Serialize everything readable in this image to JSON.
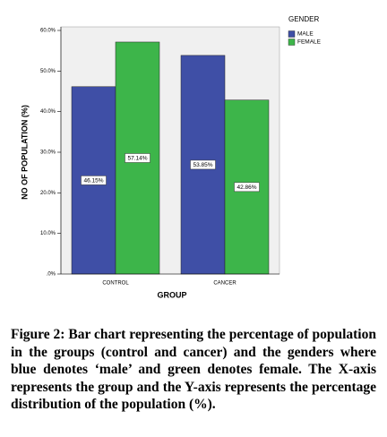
{
  "chart_data": {
    "type": "bar",
    "categories": [
      "CONTROL",
      "CANCER"
    ],
    "series": [
      {
        "name": "MALE",
        "color": "#3f4fa6",
        "values": [
          46.15,
          53.85
        ],
        "value_labels": [
          "46.15%",
          "53.85%"
        ]
      },
      {
        "name": "FEMALE",
        "color": "#3db54a",
        "values": [
          57.14,
          42.86
        ],
        "value_labels": [
          "57.14%",
          "42.86%"
        ]
      }
    ],
    "ylim": [
      0,
      60
    ],
    "yticks": [
      {
        "value": 0,
        "label": ".0%"
      },
      {
        "value": 10,
        "label": "10.0%"
      },
      {
        "value": 20,
        "label": "20.0%"
      },
      {
        "value": 30,
        "label": "30.0%"
      },
      {
        "value": 40,
        "label": "40.0%"
      },
      {
        "value": 50,
        "label": "50.0%"
      },
      {
        "value": 60,
        "label": "60.0%"
      }
    ],
    "y_label": "NO OF POPULATION (%)",
    "x_label": "GROUP",
    "legend_title": "GENDER",
    "legend_position": "right",
    "caption": "Figure 2: Bar chart representing the percentage of population in the groups (control and cancer) and the genders where blue denotes ‘male’ and green denotes female. The X-axis represents the group and the Y-axis represents the percentage distribution of the population (%)."
  }
}
